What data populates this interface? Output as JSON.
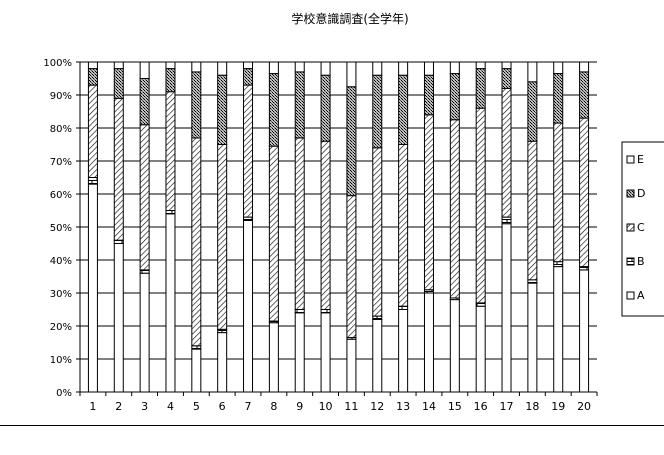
{
  "chart_data": {
    "type": "bar",
    "stacked": true,
    "percent": true,
    "title": "学校意識調査(全学年)",
    "categories": [
      "1",
      "2",
      "3",
      "4",
      "5",
      "6",
      "7",
      "8",
      "9",
      "10",
      "11",
      "12",
      "13",
      "14",
      "15",
      "16",
      "17",
      "18",
      "19",
      "20"
    ],
    "y_ticks": [
      "0%",
      "10%",
      "20%",
      "30%",
      "40%",
      "50%",
      "60%",
      "70%",
      "80%",
      "90%",
      "100%"
    ],
    "ylim": [
      0,
      100
    ],
    "grid": true,
    "legend_position": "right",
    "legend_order": [
      "E",
      "D",
      "C",
      "B",
      "A"
    ],
    "series": [
      {
        "name": "A",
        "pattern": "solid-white",
        "values": [
          63,
          45,
          36,
          54,
          13,
          18,
          52,
          21,
          24,
          24,
          16,
          22,
          25,
          30,
          28,
          26,
          51,
          33,
          38,
          37
        ]
      },
      {
        "name": "B",
        "pattern": "bricks",
        "values": [
          2,
          1,
          1,
          1,
          1,
          1,
          1,
          0.5,
          1,
          1,
          0.5,
          1,
          1,
          1,
          0.5,
          1,
          2,
          1,
          1.5,
          1
        ]
      },
      {
        "name": "C",
        "pattern": "diagonal-hatch",
        "values": [
          28,
          43,
          44,
          36,
          63,
          56,
          40,
          53,
          52,
          51,
          43,
          51,
          49,
          53,
          54,
          59,
          39,
          42,
          42,
          45
        ]
      },
      {
        "name": "D",
        "pattern": "crosshatch",
        "values": [
          5,
          9,
          14,
          7,
          20,
          21,
          5,
          22,
          20,
          20,
          33,
          22,
          21,
          12,
          14,
          12,
          6,
          18,
          15,
          14
        ]
      },
      {
        "name": "E",
        "pattern": "outline",
        "values": [
          2,
          2,
          5,
          2,
          3,
          4,
          2,
          3.5,
          3,
          4,
          7.5,
          4,
          4,
          4,
          3.5,
          2,
          2,
          6,
          3.5,
          3
        ]
      }
    ]
  }
}
